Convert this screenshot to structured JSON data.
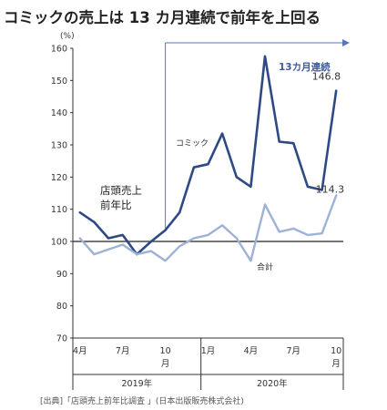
{
  "title": "コミックの売上は 13 カ月連続で前年を上回る",
  "source": "[出典]「店頭売上前年比調査 」(日本出版販売株式会社)",
  "colors": {
    "comic": "#2e4a85",
    "total": "#9db2d6",
    "arrow": "#5577bb",
    "highlight": "#3d5a9c"
  },
  "chart_data": {
    "type": "line",
    "ylabel": "(%)",
    "ylim": [
      70,
      160
    ],
    "yticks": [
      70,
      80,
      90,
      100,
      110,
      120,
      130,
      140,
      150,
      160
    ],
    "reference_line": 100,
    "x": [
      "2019-04",
      "2019-05",
      "2019-06",
      "2019-07",
      "2019-08",
      "2019-09",
      "2019-10",
      "2019-11",
      "2019-12",
      "2020-01",
      "2020-02",
      "2020-03",
      "2020-04",
      "2020-05",
      "2020-06",
      "2020-07",
      "2020-08",
      "2020-09",
      "2020-10"
    ],
    "x_tick_labels": [
      {
        "month": "4月",
        "index": 0
      },
      {
        "month": "7月",
        "index": 3
      },
      {
        "month": "10月",
        "index": 6
      },
      {
        "month": "1月",
        "index": 9
      },
      {
        "month": "4月",
        "index": 12
      },
      {
        "month": "7月",
        "index": 15
      },
      {
        "month": "10月",
        "index": 18
      }
    ],
    "year_labels": [
      {
        "label": "2019年",
        "start": 0,
        "end": 8
      },
      {
        "label": "2020年",
        "start": 9,
        "end": 18
      }
    ],
    "series": [
      {
        "name": "コミック",
        "values": [
          109,
          106,
          101,
          102,
          96,
          100,
          103.5,
          109,
          123,
          124,
          133.5,
          120,
          117,
          157.5,
          131,
          130.5,
          117,
          116,
          146.8
        ],
        "end_label": "146.8"
      },
      {
        "name": "合計",
        "values": [
          101,
          96,
          97.5,
          99,
          96,
          97,
          94,
          98.5,
          101,
          102,
          105,
          101,
          94,
          111.5,
          103,
          104,
          102,
          102.5,
          114.3
        ],
        "end_label": "114.3"
      }
    ],
    "annotations": {
      "store_label": [
        "店頭売上",
        "前年比"
      ],
      "streak_label": "13カ月連続"
    }
  }
}
